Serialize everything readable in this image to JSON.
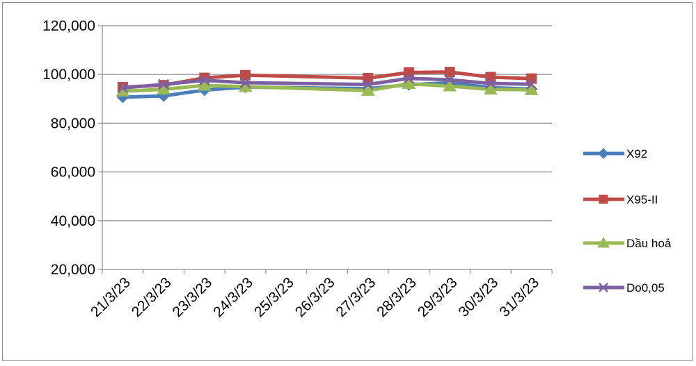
{
  "chart_data": {
    "type": "line",
    "categories": [
      "21/3/23",
      "22/3/23",
      "23/3/23",
      "24/3/23",
      "25/3/23",
      "26/3/23",
      "27/3/23",
      "28/3/23",
      "29/3/23",
      "30/3/23",
      "31/3/23"
    ],
    "ylim": [
      20000,
      120000
    ],
    "yticks": [
      "20,000",
      "40,000",
      "60,000",
      "80,000",
      "100,000",
      "120,000"
    ],
    "ytick_values": [
      20000,
      40000,
      60000,
      80000,
      100000,
      120000
    ],
    "grid": true,
    "legend_position": "right",
    "series": [
      {
        "name": "X92",
        "color": "#4a7ebb",
        "marker": "diamond",
        "points": [
          [
            0,
            90700
          ],
          [
            1,
            91200
          ],
          [
            2,
            93600
          ],
          [
            3,
            94800
          ],
          [
            6,
            94200
          ],
          [
            7,
            95800
          ],
          [
            8,
            96600
          ],
          [
            9,
            94600
          ],
          [
            10,
            94000
          ]
        ]
      },
      {
        "name": "X95-II",
        "color": "#be4b48",
        "marker": "square",
        "points": [
          [
            0,
            94800
          ],
          [
            1,
            95600
          ],
          [
            2,
            98600
          ],
          [
            3,
            99700
          ],
          [
            6,
            98500
          ],
          [
            7,
            100800
          ],
          [
            8,
            101000
          ],
          [
            9,
            98900
          ],
          [
            10,
            98300
          ]
        ]
      },
      {
        "name": "Dầu hoả",
        "color": "#98b954",
        "marker": "triangle",
        "points": [
          [
            0,
            93100
          ],
          [
            1,
            93900
          ],
          [
            2,
            95500
          ],
          [
            3,
            95000
          ],
          [
            6,
            93400
          ],
          [
            7,
            96200
          ],
          [
            8,
            95200
          ],
          [
            9,
            93900
          ],
          [
            10,
            93700
          ]
        ]
      },
      {
        "name": "Do0,05",
        "color": "#7d60a0",
        "marker": "x",
        "points": [
          [
            0,
            94500
          ],
          [
            1,
            95900
          ],
          [
            2,
            97600
          ],
          [
            3,
            96600
          ],
          [
            6,
            95900
          ],
          [
            7,
            98400
          ],
          [
            8,
            97800
          ],
          [
            9,
            96300
          ],
          [
            10,
            96000
          ]
        ]
      }
    ]
  }
}
